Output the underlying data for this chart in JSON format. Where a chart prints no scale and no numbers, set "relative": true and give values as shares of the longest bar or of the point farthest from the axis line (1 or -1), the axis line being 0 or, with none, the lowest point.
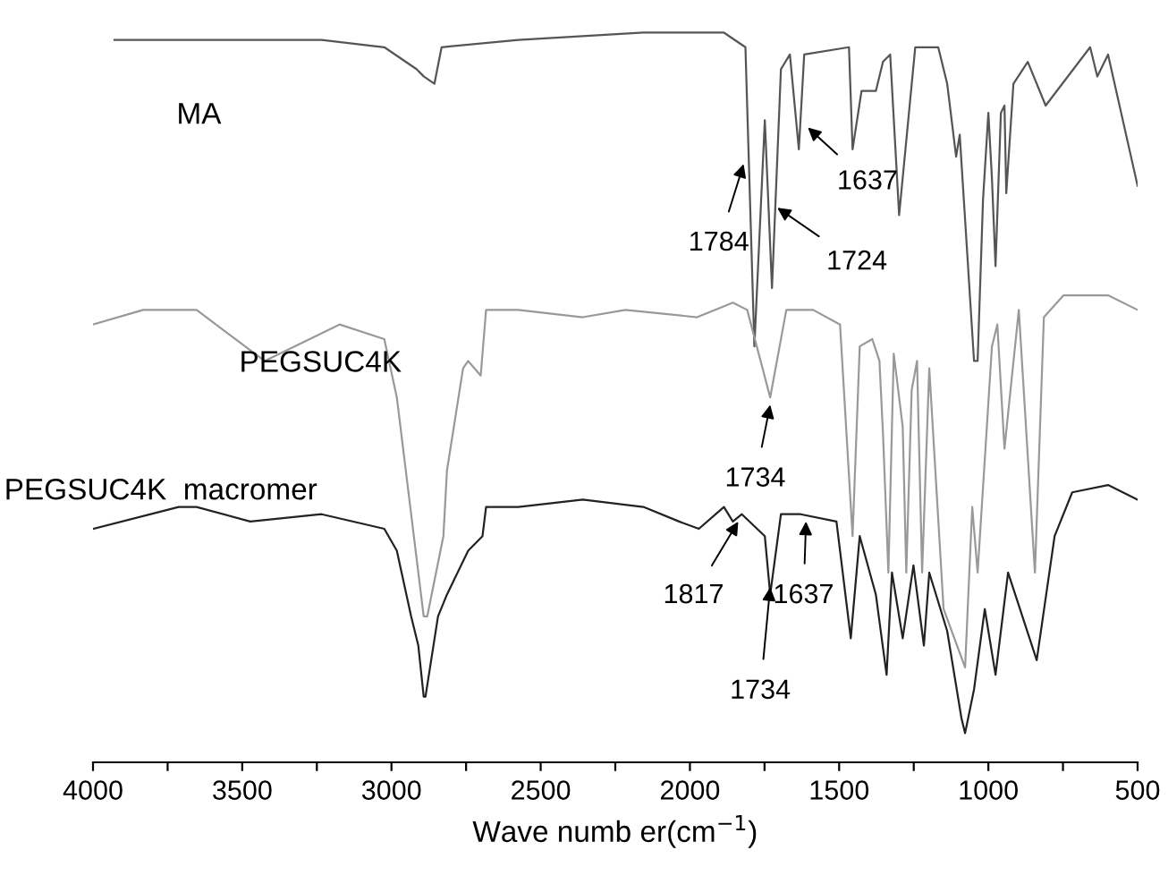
{
  "chart_data": {
    "type": "line",
    "relative": true,
    "xlabel": "Wave numb er(cm$^{−1}$)",
    "xlim": [
      4000,
      500
    ],
    "xticks": [
      4000,
      {
        "value": 3750,
        "label": null
      },
      3500,
      {
        "value": 3250,
        "label": null
      },
      3000,
      {
        "value": 2750,
        "label": null
      },
      2500,
      {
        "value": 2250,
        "label": null
      },
      2000,
      {
        "value": 1750,
        "label": null
      },
      1500,
      {
        "value": 1250,
        "label": null
      },
      1000,
      {
        "value": 750,
        "label": null
      },
      500
    ],
    "grid": false,
    "legend": false,
    "marker": "none",
    "line_style": "solid",
    "series": [
      {
        "name": "MA",
        "color": "#555555",
        "x": [
          3928,
          3713,
          3473,
          3234,
          3024,
          2916,
          2892,
          2856,
          2832,
          2575,
          2156,
          1886,
          1814,
          1784,
          1749,
          1725,
          1695,
          1665,
          1635,
          1617,
          1467,
          1455,
          1425,
          1377,
          1353,
          1329,
          1299,
          1245,
          1168,
          1138,
          1108,
          1096,
          1048,
          1036,
          1018,
          1000,
          988,
          976,
          958,
          946,
          940,
          916,
          868,
          808,
          659,
          635,
          599,
          500
        ],
        "values": [
          0.99,
          0.99,
          0.99,
          0.99,
          0.98,
          0.95,
          0.94,
          0.93,
          0.98,
          0.99,
          1.0,
          1.0,
          0.98,
          0.57,
          0.88,
          0.65,
          0.95,
          0.97,
          0.84,
          0.97,
          0.98,
          0.84,
          0.92,
          0.92,
          0.96,
          0.97,
          0.75,
          0.98,
          0.98,
          0.93,
          0.83,
          0.86,
          0.55,
          0.55,
          0.77,
          0.89,
          0.8,
          0.68,
          0.89,
          0.9,
          0.78,
          0.93,
          0.96,
          0.9,
          0.98,
          0.94,
          0.97,
          0.79
        ]
      },
      {
        "name": "PEGSUC4K",
        "color": "#999999",
        "x": [
          4000,
          3832,
          3653,
          3425,
          3174,
          3024,
          2982,
          2946,
          2892,
          2880,
          2826,
          2814,
          2760,
          2743,
          2701,
          2683,
          2575,
          2359,
          2216,
          1976,
          1856,
          1808,
          1731,
          1677,
          1587,
          1497,
          1455,
          1431,
          1389,
          1365,
          1353,
          1335,
          1317,
          1287,
          1275,
          1257,
          1239,
          1222,
          1198,
          1150,
          1078,
          1054,
          1036,
          988,
          970,
          946,
          898,
          844,
          814,
          748,
          599,
          500
        ],
        "values": [
          0.6,
          0.62,
          0.62,
          0.55,
          0.6,
          0.58,
          0.5,
          0.38,
          0.2,
          0.2,
          0.31,
          0.4,
          0.54,
          0.55,
          0.53,
          0.62,
          0.62,
          0.61,
          0.62,
          0.61,
          0.63,
          0.62,
          0.5,
          0.62,
          0.62,
          0.6,
          0.31,
          0.57,
          0.58,
          0.55,
          0.45,
          0.26,
          0.56,
          0.46,
          0.26,
          0.51,
          0.55,
          0.26,
          0.54,
          0.21,
          0.13,
          0.35,
          0.26,
          0.57,
          0.6,
          0.43,
          0.62,
          0.26,
          0.61,
          0.64,
          0.64,
          0.62
        ]
      },
      {
        "name": "PEGSUC4K  macromer",
        "color": "#222222",
        "x": [
          4000,
          3713,
          3653,
          3473,
          3234,
          3024,
          2982,
          2934,
          2910,
          2892,
          2886,
          2844,
          2814,
          2743,
          2695,
          2683,
          2575,
          2359,
          2156,
          2036,
          1970,
          1886,
          1856,
          1826,
          1749,
          1731,
          1695,
          1629,
          1509,
          1461,
          1431,
          1377,
          1341,
          1323,
          1287,
          1251,
          1216,
          1198,
          1138,
          1090,
          1078,
          1048,
          1012,
          976,
          934,
          838,
          778,
          719,
          599,
          500
        ],
        "values": [
          0.32,
          0.35,
          0.35,
          0.33,
          0.34,
          0.32,
          0.29,
          0.2,
          0.16,
          0.09,
          0.09,
          0.2,
          0.23,
          0.29,
          0.31,
          0.35,
          0.35,
          0.36,
          0.35,
          0.33,
          0.32,
          0.35,
          0.33,
          0.34,
          0.31,
          0.23,
          0.34,
          0.34,
          0.33,
          0.17,
          0.31,
          0.23,
          0.12,
          0.26,
          0.17,
          0.27,
          0.16,
          0.26,
          0.18,
          0.06,
          0.04,
          0.1,
          0.21,
          0.12,
          0.26,
          0.14,
          0.31,
          0.37,
          0.38,
          0.36
        ]
      }
    ],
    "annotations": [
      {
        "text": "1784",
        "x": 1820,
        "y": 0.82
      },
      {
        "text": "1724",
        "x": 1707,
        "y": 0.76
      },
      {
        "text": "1637",
        "x": 1605,
        "y": 0.87
      },
      {
        "text": "1734",
        "x": 1731,
        "y": 0.49
      },
      {
        "text": "1817",
        "x": 1838,
        "y": 0.33
      },
      {
        "text": "1734",
        "x": 1731,
        "y": 0.24
      },
      {
        "text": "1637",
        "x": 1611,
        "y": 0.33
      }
    ]
  }
}
